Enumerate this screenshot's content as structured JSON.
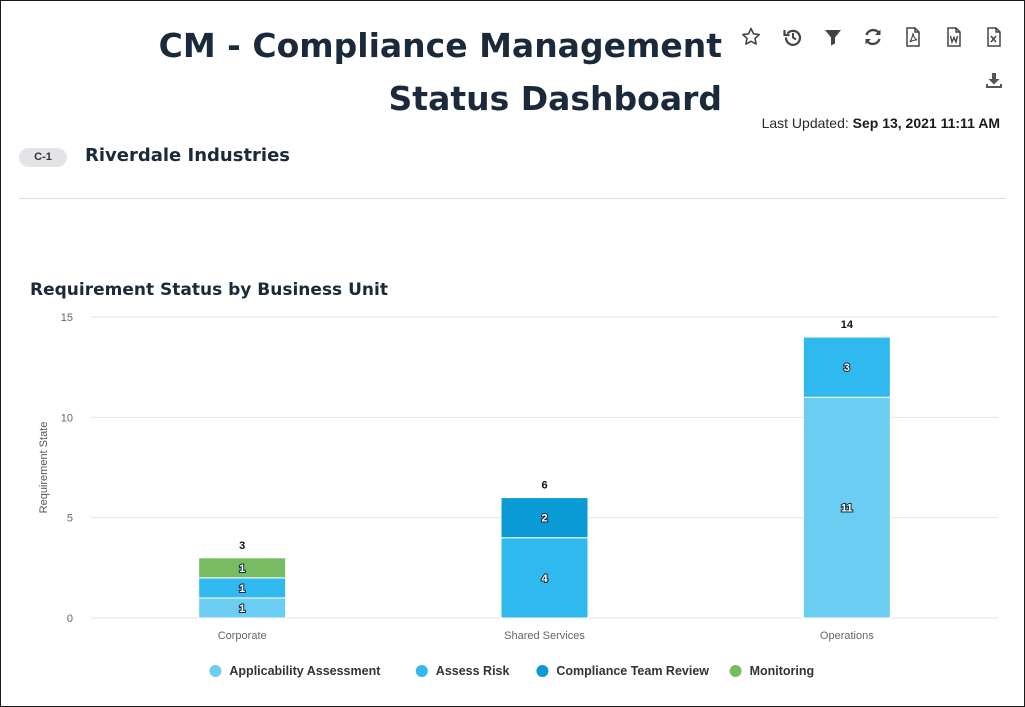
{
  "dashboard": {
    "title": "CM - Compliance Management Status Dashboard",
    "last_updated_label": "Last Updated:",
    "last_updated_value": "Sep 13, 2021 11:11 AM",
    "badge": "C-1",
    "organization": "Riverdale Industries"
  },
  "toolbar": {
    "icons": [
      "star-icon",
      "history-icon",
      "filter-icon",
      "refresh-icon",
      "pdf-export-icon",
      "word-export-icon",
      "excel-export-icon",
      "download-icon"
    ]
  },
  "chart_data": {
    "type": "bar",
    "stacked": true,
    "title": "Requirement Status by Business Unit",
    "xlabel": "",
    "ylabel": "Requirement State",
    "ylim": [
      0,
      15
    ],
    "yticks": [
      0,
      5,
      10,
      15
    ],
    "grid": true,
    "legend_position": "bottom",
    "categories": [
      "Corporate",
      "Shared Services",
      "Operations"
    ],
    "series": [
      {
        "name": "Applicability Assessment",
        "color": "#6acdf1",
        "values": [
          1,
          0,
          11
        ]
      },
      {
        "name": "Assess Risk",
        "color": "#2fb9ef",
        "values": [
          1,
          4,
          3
        ]
      },
      {
        "name": "Compliance Team Review",
        "color": "#0a9bd6",
        "values": [
          0,
          2,
          0
        ]
      },
      {
        "name": "Monitoring",
        "color": "#77bb63",
        "values": [
          1,
          0,
          0
        ]
      }
    ],
    "totals": [
      3,
      6,
      14
    ]
  }
}
